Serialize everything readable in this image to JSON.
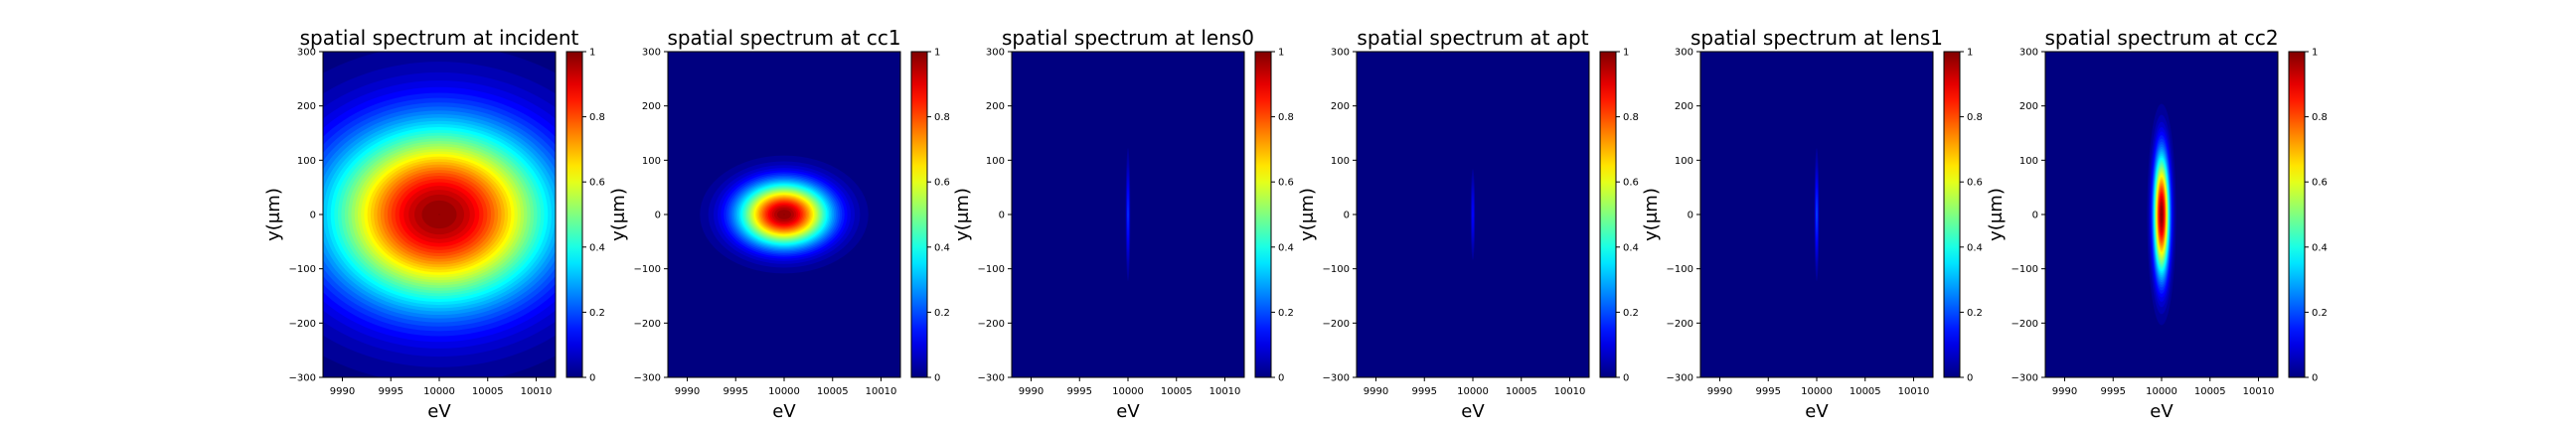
{
  "chart_data": [
    {
      "type": "heatmap",
      "title": "spatial spectrum at incident",
      "xlabel": "eV",
      "ylabel": "y(μm)",
      "xlim": [
        9988,
        10012
      ],
      "ylim": [
        -300,
        300
      ],
      "xticks": [
        9990,
        9995,
        10000,
        10005,
        10010
      ],
      "yticks": [
        -300,
        -200,
        -100,
        0,
        100,
        200,
        300
      ],
      "colorbar": {
        "range": [
          0,
          1
        ],
        "ticks": [
          0.0,
          0.2,
          0.4,
          0.6,
          0.8,
          1.0
        ],
        "colormap": "jet"
      },
      "spot": {
        "center_ev": 10000,
        "center_um": 0,
        "sigma_ev": 8.0,
        "sigma_um": 115
      }
    },
    {
      "type": "heatmap",
      "title": "spatial spectrum at cc1",
      "xlabel": "eV",
      "ylabel": "y(μm)",
      "xlim": [
        9988,
        10012
      ],
      "ylim": [
        -300,
        300
      ],
      "xticks": [
        9990,
        9995,
        10000,
        10005,
        10010
      ],
      "yticks": [
        -300,
        -200,
        -100,
        0,
        100,
        200,
        300
      ],
      "colorbar": {
        "range": [
          0,
          1
        ],
        "ticks": [
          0.0,
          0.2,
          0.4,
          0.6,
          0.8,
          1.0
        ],
        "colormap": "jet"
      },
      "spot": {
        "center_ev": 10000,
        "center_um": 0,
        "sigma_ev": 3.2,
        "sigma_um": 40
      }
    },
    {
      "type": "heatmap",
      "title": "spatial spectrum at lens0",
      "xlabel": "eV",
      "ylabel": "y(μm)",
      "xlim": [
        9988,
        10012
      ],
      "ylim": [
        -300,
        300
      ],
      "xticks": [
        9990,
        9995,
        10000,
        10005,
        10010
      ],
      "yticks": [
        -300,
        -200,
        -100,
        0,
        100,
        200,
        300
      ],
      "colorbar": {
        "range": [
          0,
          1
        ],
        "ticks": [
          0.0,
          0.2,
          0.4,
          0.6,
          0.8,
          1.0
        ],
        "colormap": "jet"
      },
      "spot": {
        "center_ev": 10000,
        "center_um": 0,
        "sigma_ev": 0.12,
        "sigma_um": 60,
        "peak": 0.17
      }
    },
    {
      "type": "heatmap",
      "title": "spatial spectrum at apt",
      "xlabel": "eV",
      "ylabel": "y(μm)",
      "xlim": [
        9988,
        10012
      ],
      "ylim": [
        -300,
        300
      ],
      "xticks": [
        9990,
        9995,
        10000,
        10005,
        10010
      ],
      "yticks": [
        -300,
        -200,
        -100,
        0,
        100,
        200,
        300
      ],
      "colorbar": {
        "range": [
          0,
          1
        ],
        "ticks": [
          0.0,
          0.2,
          0.4,
          0.6,
          0.8,
          1.0
        ],
        "colormap": "jet"
      },
      "spot": {
        "center_ev": 10000,
        "center_um": 0,
        "sigma_ev": 0.12,
        "sigma_um": 45,
        "peak": 0.13
      }
    },
    {
      "type": "heatmap",
      "title": "spatial spectrum at lens1",
      "xlabel": "eV",
      "ylabel": "y(μm)",
      "xlim": [
        9988,
        10012
      ],
      "ylim": [
        -300,
        300
      ],
      "xticks": [
        9990,
        9995,
        10000,
        10005,
        10010
      ],
      "yticks": [
        -300,
        -200,
        -100,
        0,
        100,
        200,
        300
      ],
      "colorbar": {
        "range": [
          0,
          1
        ],
        "ticks": [
          0.0,
          0.2,
          0.4,
          0.6,
          0.8,
          1.0
        ],
        "colormap": "jet"
      },
      "spot": {
        "center_ev": 10000,
        "center_um": 0,
        "sigma_ev": 0.12,
        "sigma_um": 60,
        "peak": 0.19
      }
    },
    {
      "type": "heatmap",
      "title": "spatial spectrum at cc2",
      "xlabel": "eV",
      "ylabel": "y(μm)",
      "xlim": [
        9988,
        10012
      ],
      "ylim": [
        -300,
        300
      ],
      "xticks": [
        9990,
        9995,
        10000,
        10005,
        10010
      ],
      "yticks": [
        -300,
        -200,
        -100,
        0,
        100,
        200,
        300
      ],
      "colorbar": {
        "range": [
          0,
          1
        ],
        "ticks": [
          0.0,
          0.2,
          0.4,
          0.6,
          0.8,
          1.0
        ],
        "colormap": "jet"
      },
      "spot": {
        "center_ev": 10000,
        "center_um": 0,
        "sigma_ev": 0.55,
        "sigma_um": 75
      }
    }
  ]
}
